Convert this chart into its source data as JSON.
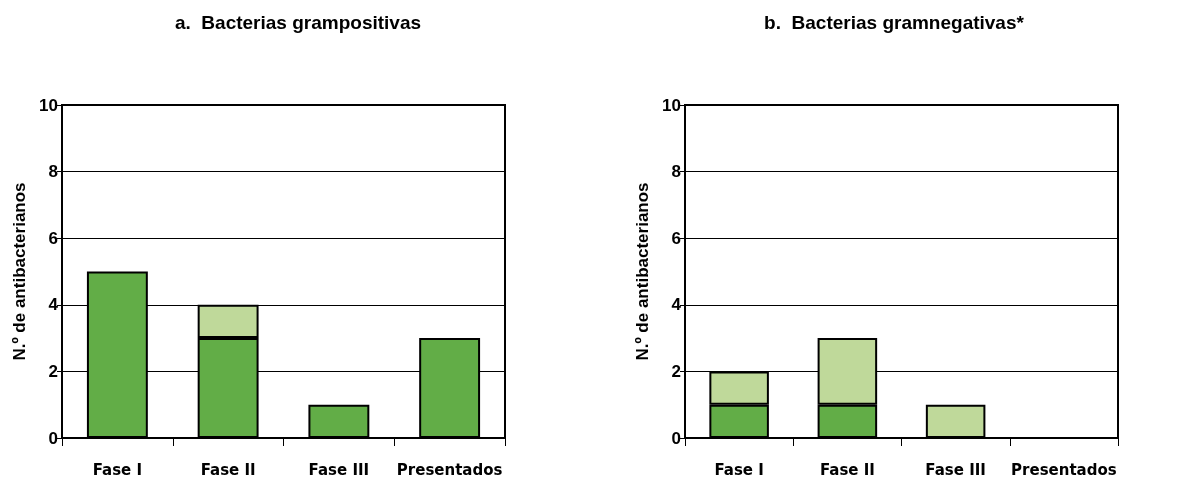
{
  "chart_data": [
    {
      "type": "bar",
      "title": "a.  Bacterias grampositivas",
      "ylabel": "N.º de antibacterianos",
      "categories": [
        "Fase I",
        "Fase II",
        "Fase III",
        "Presentados"
      ],
      "stacked": true,
      "series": [
        {
          "color": "#62ad47",
          "values": [
            5,
            3,
            1,
            3
          ]
        },
        {
          "color": "#bfd99a",
          "values": [
            0,
            1,
            0,
            0
          ]
        }
      ],
      "ylim": [
        0,
        10
      ],
      "yticks": [
        0,
        2,
        4,
        6,
        8,
        10
      ],
      "grid": "y"
    },
    {
      "type": "bar",
      "title": "b.  Bacterias gramnegativas*",
      "ylabel": "N.º de antibacterianos",
      "categories": [
        "Fase I",
        "Fase II",
        "Fase III",
        "Presentados"
      ],
      "stacked": true,
      "series": [
        {
          "color": "#62ad47",
          "values": [
            1,
            1,
            0,
            0
          ]
        },
        {
          "color": "#bfd99a",
          "values": [
            1,
            2,
            1,
            0
          ]
        }
      ],
      "ylim": [
        0,
        10
      ],
      "yticks": [
        0,
        2,
        4,
        6,
        8,
        10
      ],
      "grid": "y"
    }
  ]
}
